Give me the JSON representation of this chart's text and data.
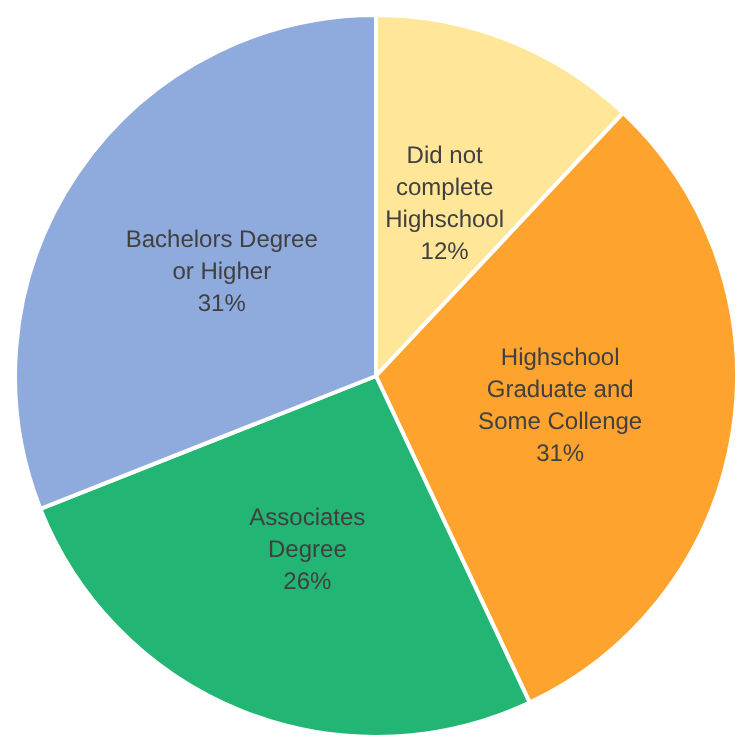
{
  "chart_data": {
    "type": "pie",
    "categories": [
      "Did not\ncomplete\nHighschool",
      "Highschool\nGraduate and\nSome Collenge",
      "Associates\nDegree",
      "Bachelors Degree\nor Higher"
    ],
    "values": [
      12,
      31,
      26,
      31
    ],
    "colors": [
      "#ffe699",
      "#ffa32f",
      "#22b573",
      "#8faadc"
    ],
    "value_labels": [
      "12%",
      "31%",
      "26%",
      "31%"
    ],
    "legend": false
  }
}
